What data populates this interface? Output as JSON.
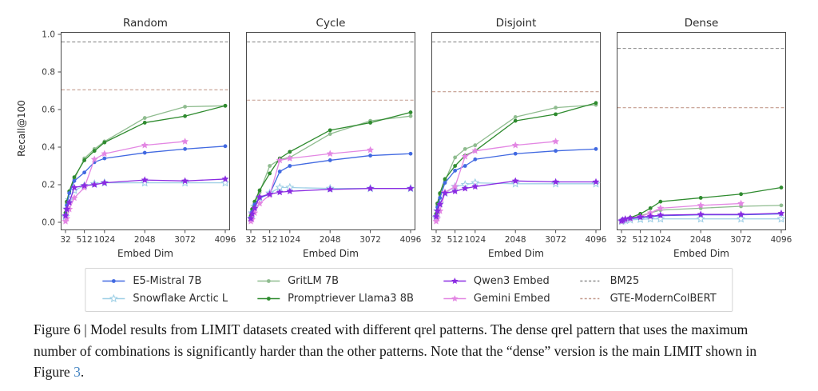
{
  "figure": {
    "y_axis_label": "Recall@100",
    "x_axis_label": "Embed Dim",
    "x_tick_labels": [
      "32",
      "512",
      "1024",
      "2048",
      "3072",
      "4096"
    ],
    "y_tick_labels": [
      "0.0",
      "0.2",
      "0.4",
      "0.6",
      "0.8",
      "1.0"
    ]
  },
  "styles": {
    "E5-Mistral 7B": {
      "color": "#4169e1",
      "marker": "circle"
    },
    "Snowflake Arctic L": {
      "color": "#9fd0e6",
      "marker": "star-open"
    },
    "GritLM 7B": {
      "color": "#8fbc8f",
      "marker": "circle"
    },
    "Promptriever Llama3 8B": {
      "color": "#2f8b2f",
      "marker": "circle"
    },
    "Qwen3 Embed": {
      "color": "#8a2be2",
      "marker": "star"
    },
    "Gemini Embed": {
      "color": "#e387e3",
      "marker": "star"
    },
    "BM25": {
      "color": "#8a8a8a",
      "dash": true
    },
    "GTE-ModernColBERT": {
      "color": "#c49c8e",
      "dash": true
    }
  },
  "legend": {
    "entries": [
      "E5-Mistral 7B",
      "Snowflake Arctic L",
      "GritLM 7B",
      "Promptriever Llama3 8B",
      "Qwen3 Embed",
      "Gemini Embed",
      "BM25",
      "GTE-ModernColBERT"
    ]
  },
  "chart_data": [
    {
      "type": "line",
      "title": "Random",
      "xlabel": "Embed Dim",
      "ylabel": "Recall@100",
      "show_y_tick_labels": true,
      "x_ticks": [
        32,
        512,
        1024,
        2048,
        3072,
        4096
      ],
      "xlim": [
        32,
        4096
      ],
      "ylim": [
        0,
        1
      ],
      "y_ticks": [
        0.0,
        0.2,
        0.4,
        0.6,
        0.8,
        1.0
      ],
      "grid": false,
      "series": [
        {
          "name": "E5-Mistral 7B",
          "x": [
            32,
            64,
            128,
            256,
            512,
            768,
            1024,
            2048,
            3072,
            4096
          ],
          "y": [
            0.04,
            0.09,
            0.155,
            0.22,
            0.265,
            0.32,
            0.34,
            0.37,
            0.39,
            0.405
          ]
        },
        {
          "name": "Snowflake Arctic L",
          "x": [
            32,
            64,
            128,
            256,
            512,
            768,
            1024,
            2048,
            3072,
            4096
          ],
          "y": [
            0.03,
            0.07,
            0.12,
            0.17,
            0.195,
            0.205,
            0.21,
            0.21,
            0.21,
            0.21
          ]
        },
        {
          "name": "GritLM 7B",
          "x": [
            32,
            64,
            128,
            256,
            512,
            768,
            1024,
            2048,
            3072,
            4096
          ],
          "y": [
            0.05,
            0.1,
            0.16,
            0.23,
            0.34,
            0.39,
            0.43,
            0.555,
            0.615,
            0.62
          ]
        },
        {
          "name": "Promptriever Llama3 8B",
          "x": [
            32,
            64,
            128,
            256,
            512,
            768,
            1024,
            2048,
            3072,
            4096
          ],
          "y": [
            0.05,
            0.11,
            0.165,
            0.24,
            0.33,
            0.38,
            0.425,
            0.53,
            0.565,
            0.62
          ]
        },
        {
          "name": "Qwen3 Embed",
          "x": [
            32,
            64,
            128,
            256,
            512,
            768,
            1024,
            2048,
            3072,
            4096
          ],
          "y": [
            0.035,
            0.07,
            0.105,
            0.185,
            0.195,
            0.2,
            0.21,
            0.225,
            0.22,
            0.23
          ]
        },
        {
          "name": "Gemini Embed",
          "x": [
            32,
            64,
            128,
            256,
            512,
            768,
            1024,
            2048,
            3072
          ],
          "y": [
            0.005,
            0.02,
            0.07,
            0.13,
            0.185,
            0.335,
            0.365,
            0.41,
            0.43
          ]
        }
      ],
      "hlines": [
        {
          "name": "BM25",
          "y": 0.96
        },
        {
          "name": "GTE-ModernColBERT",
          "y": 0.705
        }
      ]
    },
    {
      "type": "line",
      "title": "Cycle",
      "xlabel": "Embed Dim",
      "show_y_tick_labels": false,
      "x_ticks": [
        32,
        512,
        1024,
        2048,
        3072,
        4096
      ],
      "xlim": [
        32,
        4096
      ],
      "ylim": [
        0,
        1
      ],
      "y_ticks": [
        0.0,
        0.2,
        0.4,
        0.6,
        0.8,
        1.0
      ],
      "grid": false,
      "series": [
        {
          "name": "E5-Mistral 7B",
          "x": [
            32,
            64,
            128,
            256,
            512,
            768,
            1024,
            2048,
            3072,
            4096
          ],
          "y": [
            0.025,
            0.055,
            0.095,
            0.13,
            0.15,
            0.27,
            0.3,
            0.33,
            0.355,
            0.365
          ]
        },
        {
          "name": "Snowflake Arctic L",
          "x": [
            32,
            64,
            128,
            256,
            512,
            768,
            1024,
            2048,
            3072,
            4096
          ],
          "y": [
            0.02,
            0.05,
            0.085,
            0.13,
            0.155,
            0.185,
            0.185,
            0.18,
            0.18,
            0.18
          ]
        },
        {
          "name": "GritLM 7B",
          "x": [
            32,
            64,
            128,
            256,
            512,
            768,
            1024,
            2048,
            3072,
            4096
          ],
          "y": [
            0.03,
            0.06,
            0.1,
            0.16,
            0.3,
            0.335,
            0.345,
            0.47,
            0.54,
            0.565
          ]
        },
        {
          "name": "Promptriever Llama3 8B",
          "x": [
            32,
            64,
            128,
            256,
            512,
            768,
            1024,
            2048,
            3072,
            4096
          ],
          "y": [
            0.035,
            0.07,
            0.11,
            0.17,
            0.26,
            0.34,
            0.375,
            0.49,
            0.53,
            0.585
          ]
        },
        {
          "name": "Qwen3 Embed",
          "x": [
            32,
            64,
            128,
            256,
            512,
            768,
            1024,
            2048,
            3072,
            4096
          ],
          "y": [
            0.02,
            0.045,
            0.075,
            0.135,
            0.15,
            0.16,
            0.165,
            0.175,
            0.18,
            0.18
          ]
        },
        {
          "name": "Gemini Embed",
          "x": [
            32,
            64,
            128,
            256,
            512,
            768,
            1024,
            2048,
            3072
          ],
          "y": [
            0.005,
            0.015,
            0.05,
            0.1,
            0.145,
            0.33,
            0.34,
            0.365,
            0.385
          ]
        }
      ],
      "hlines": [
        {
          "name": "BM25",
          "y": 0.96
        },
        {
          "name": "GTE-ModernColBERT",
          "y": 0.65
        }
      ]
    },
    {
      "type": "line",
      "title": "Disjoint",
      "xlabel": "Embed Dim",
      "show_y_tick_labels": false,
      "x_ticks": [
        32,
        512,
        1024,
        2048,
        3072,
        4096
      ],
      "xlim": [
        32,
        4096
      ],
      "ylim": [
        0,
        1
      ],
      "y_ticks": [
        0.0,
        0.2,
        0.4,
        0.6,
        0.8,
        1.0
      ],
      "grid": false,
      "series": [
        {
          "name": "E5-Mistral 7B",
          "x": [
            32,
            64,
            128,
            256,
            512,
            768,
            1024,
            2048,
            3072,
            4096
          ],
          "y": [
            0.035,
            0.08,
            0.13,
            0.21,
            0.275,
            0.3,
            0.335,
            0.365,
            0.38,
            0.39
          ]
        },
        {
          "name": "Snowflake Arctic L",
          "x": [
            32,
            64,
            128,
            256,
            512,
            768,
            1024,
            2048,
            3072,
            4096
          ],
          "y": [
            0.025,
            0.06,
            0.1,
            0.155,
            0.19,
            0.2,
            0.21,
            0.205,
            0.205,
            0.205
          ]
        },
        {
          "name": "GritLM 7B",
          "x": [
            32,
            64,
            128,
            256,
            512,
            768,
            1024,
            2048,
            3072,
            4096
          ],
          "y": [
            0.04,
            0.09,
            0.15,
            0.22,
            0.345,
            0.39,
            0.41,
            0.56,
            0.61,
            0.625
          ]
        },
        {
          "name": "Promptriever Llama3 8B",
          "x": [
            32,
            64,
            128,
            256,
            512,
            768,
            1024,
            2048,
            3072,
            4096
          ],
          "y": [
            0.045,
            0.1,
            0.155,
            0.23,
            0.3,
            0.355,
            0.38,
            0.54,
            0.575,
            0.635
          ]
        },
        {
          "name": "Qwen3 Embed",
          "x": [
            32,
            64,
            128,
            256,
            512,
            768,
            1024,
            2048,
            3072,
            4096
          ],
          "y": [
            0.03,
            0.06,
            0.095,
            0.155,
            0.165,
            0.18,
            0.19,
            0.22,
            0.215,
            0.215
          ]
        },
        {
          "name": "Gemini Embed",
          "x": [
            32,
            64,
            128,
            256,
            512,
            768,
            1024,
            2048,
            3072
          ],
          "y": [
            0.005,
            0.02,
            0.06,
            0.16,
            0.19,
            0.35,
            0.38,
            0.41,
            0.43
          ]
        }
      ],
      "hlines": [
        {
          "name": "BM25",
          "y": 0.96
        },
        {
          "name": "GTE-ModernColBERT",
          "y": 0.695
        }
      ]
    },
    {
      "type": "line",
      "title": "Dense",
      "xlabel": "Embed Dim",
      "show_y_tick_labels": false,
      "x_ticks": [
        32,
        512,
        1024,
        2048,
        3072,
        4096
      ],
      "xlim": [
        32,
        4096
      ],
      "ylim": [
        0,
        1
      ],
      "y_ticks": [
        0.0,
        0.2,
        0.4,
        0.6,
        0.8,
        1.0
      ],
      "grid": false,
      "series": [
        {
          "name": "E5-Mistral 7B",
          "x": [
            32,
            64,
            128,
            256,
            512,
            768,
            1024,
            2048,
            3072,
            4096
          ],
          "y": [
            0.005,
            0.008,
            0.012,
            0.018,
            0.025,
            0.03,
            0.035,
            0.04,
            0.04,
            0.045
          ]
        },
        {
          "name": "Snowflake Arctic L",
          "x": [
            32,
            64,
            128,
            256,
            512,
            768,
            1024,
            2048,
            3072,
            4096
          ],
          "y": [
            0.005,
            0.008,
            0.01,
            0.013,
            0.016,
            0.018,
            0.018,
            0.018,
            0.018,
            0.018
          ]
        },
        {
          "name": "GritLM 7B",
          "x": [
            32,
            64,
            128,
            256,
            512,
            768,
            1024,
            2048,
            3072,
            4096
          ],
          "y": [
            0.005,
            0.01,
            0.015,
            0.02,
            0.035,
            0.05,
            0.065,
            0.075,
            0.085,
            0.09
          ]
        },
        {
          "name": "Promptriever Llama3 8B",
          "x": [
            32,
            64,
            128,
            256,
            512,
            768,
            1024,
            2048,
            3072,
            4096
          ],
          "y": [
            0.005,
            0.01,
            0.015,
            0.025,
            0.045,
            0.075,
            0.11,
            0.13,
            0.15,
            0.185
          ]
        },
        {
          "name": "Qwen3 Embed",
          "x": [
            32,
            64,
            128,
            256,
            512,
            768,
            1024,
            2048,
            3072,
            4096
          ],
          "y": [
            0.008,
            0.012,
            0.018,
            0.022,
            0.028,
            0.032,
            0.038,
            0.042,
            0.042,
            0.048
          ]
        },
        {
          "name": "Gemini Embed",
          "x": [
            32,
            64,
            128,
            256,
            512,
            768,
            1024,
            2048,
            3072
          ],
          "y": [
            0.005,
            0.01,
            0.015,
            0.02,
            0.03,
            0.05,
            0.075,
            0.09,
            0.1
          ]
        }
      ],
      "hlines": [
        {
          "name": "BM25",
          "y": 0.925
        },
        {
          "name": "GTE-ModernColBERT",
          "y": 0.61
        }
      ]
    }
  ],
  "caption": {
    "before_link": "Figure 6 | Model results from LIMIT datasets created with different qrel patterns. The dense qrel pattern that uses the maximum number of combinations is significantly harder than the other patterns. Note that the “dense” version is the main LIMIT shown in Figure ",
    "link_text": "3",
    "after_link": "."
  }
}
